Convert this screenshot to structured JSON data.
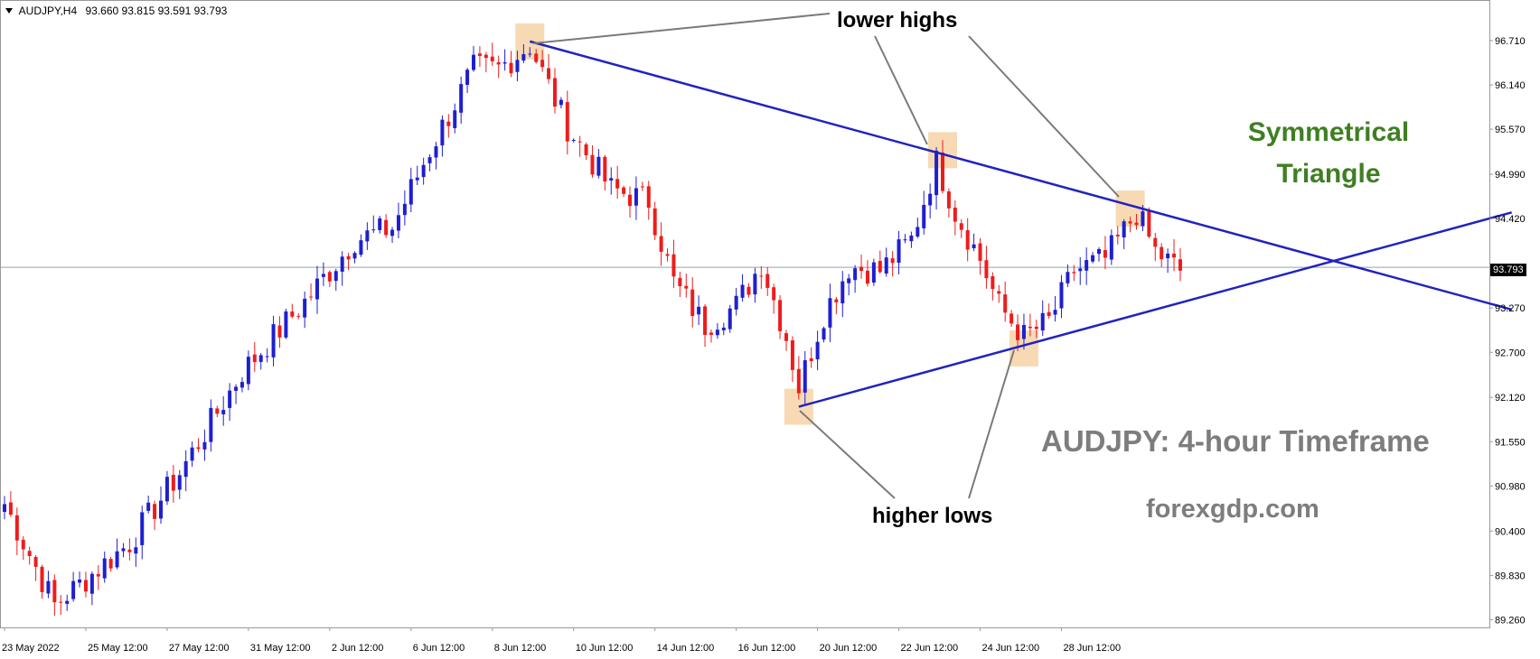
{
  "header": {
    "symbol": "AUDJPY,H4",
    "ohlc": "93.660 93.815 93.591 93.793"
  },
  "annotations": {
    "title_line1": "Symmetrical",
    "title_line2": "Triangle",
    "lower_highs": "lower highs",
    "higher_lows": "higher lows",
    "timeframe": "AUDJPY: 4-hour Timeframe",
    "site": "forexgdp.com"
  },
  "colors": {
    "bull": "#1f1fd0",
    "bear": "#ee1c1c",
    "trendline": "#2222c0",
    "highlight": "#f6d3a6",
    "pointer": "#7a7a7a",
    "current_price_line": "#8fa3b4",
    "axis": "#999999"
  },
  "chart_data": {
    "type": "candlestick",
    "symbol": "AUDJPY",
    "timeframe": "H4",
    "last_price": "93.793",
    "y_ticks": [
      "96.710",
      "96.140",
      "95.570",
      "94.990",
      "94.420",
      "93.270",
      "92.700",
      "92.120",
      "91.550",
      "90.980",
      "90.400",
      "89.830",
      "89.260"
    ],
    "ylim": [
      89.0,
      97.3
    ],
    "x_ticks": [
      "23 May 2022",
      "25 May 12:00",
      "27 May 12:00",
      "31 May 12:00",
      "2 Jun 12:00",
      "6 Jun 12:00",
      "8 Jun 12:00",
      "10 Jun 12:00",
      "14 Jun 12:00",
      "16 Jun 12:00",
      "20 Jun 12:00",
      "22 Jun 12:00",
      "24 Jun 12:00",
      "28 Jun 12:00"
    ],
    "anchors": [
      {
        "bar": 0,
        "price": 90.75
      },
      {
        "bar": 8,
        "price": 89.45
      },
      {
        "bar": 20,
        "price": 90.25
      },
      {
        "bar": 28,
        "price": 91.15
      },
      {
        "bar": 38,
        "price": 92.45
      },
      {
        "bar": 48,
        "price": 93.35
      },
      {
        "bar": 56,
        "price": 94.15
      },
      {
        "bar": 62,
        "price": 94.3
      },
      {
        "bar": 68,
        "price": 95.3
      },
      {
        "bar": 75,
        "price": 96.35
      },
      {
        "bar": 79,
        "price": 96.35
      },
      {
        "bar": 84,
        "price": 96.65
      },
      {
        "bar": 90,
        "price": 95.6
      },
      {
        "bar": 97,
        "price": 94.8
      },
      {
        "bar": 103,
        "price": 94.65
      },
      {
        "bar": 107,
        "price": 93.6
      },
      {
        "bar": 112,
        "price": 93.05
      },
      {
        "bar": 117,
        "price": 93.3
      },
      {
        "bar": 121,
        "price": 93.85
      },
      {
        "bar": 125,
        "price": 92.9
      },
      {
        "bar": 127,
        "price": 92.25
      },
      {
        "bar": 131,
        "price": 93.2
      },
      {
        "bar": 135,
        "price": 93.8
      },
      {
        "bar": 140,
        "price": 93.75
      },
      {
        "bar": 145,
        "price": 94.15
      },
      {
        "bar": 149,
        "price": 95.15
      },
      {
        "bar": 152,
        "price": 94.5
      },
      {
        "bar": 156,
        "price": 93.9
      },
      {
        "bar": 159,
        "price": 93.3
      },
      {
        "bar": 163,
        "price": 92.9
      },
      {
        "bar": 167,
        "price": 93.1
      },
      {
        "bar": 171,
        "price": 93.75
      },
      {
        "bar": 176,
        "price": 93.9
      },
      {
        "bar": 181,
        "price": 94.5
      },
      {
        "bar": 184,
        "price": 94.0
      },
      {
        "bar": 188,
        "price": 93.75
      }
    ],
    "trendlines": [
      {
        "name": "upper",
        "from": {
          "bar": 84,
          "price": 96.7
        },
        "to": {
          "bar": 241,
          "price": 93.25
        }
      },
      {
        "name": "lower",
        "from": {
          "bar": 127,
          "price": 92.0
        },
        "to": {
          "bar": 241,
          "price": 94.5
        }
      }
    ],
    "highlighted_pivots": [
      {
        "bar": 84,
        "price": 96.7
      },
      {
        "bar": 150,
        "price": 95.3
      },
      {
        "bar": 180,
        "price": 94.55
      },
      {
        "bar": 127,
        "price": 92.0
      },
      {
        "bar": 163,
        "price": 92.75
      }
    ]
  }
}
